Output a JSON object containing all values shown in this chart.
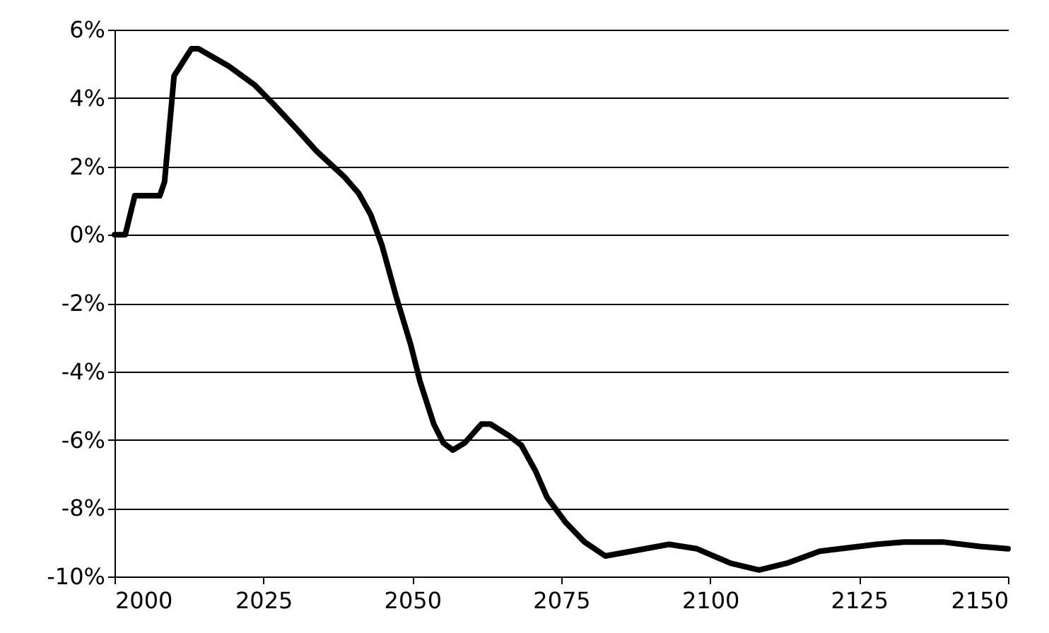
{
  "chart_data": {
    "type": "line",
    "x": [
      2000,
      2001.8,
      2003.4,
      2007.6,
      2008.4,
      2010,
      2012.9,
      2014.1,
      2019.2,
      2023.6,
      2026.7,
      2030.7,
      2033.9,
      2038.6,
      2041,
      2043,
      2044.9,
      2047.3,
      2049.7,
      2051.3,
      2053.6,
      2055.2,
      2056.8,
      2058.8,
      2061.6,
      2063.1,
      2066.3,
      2068.3,
      2070.7,
      2072.6,
      2075.8,
      2078.9,
      2082.4,
      2086.8,
      2093.1,
      2097.8,
      2103.4,
      2108.2,
      2112.9,
      2118.4,
      2127.9,
      2132.6,
      2139,
      2145.3,
      2150
    ],
    "series": [
      {
        "color": "#000000",
        "values": [
          0,
          0,
          1.14,
          1.14,
          1.55,
          4.65,
          5.44,
          5.44,
          4.93,
          4.37,
          3.82,
          3.07,
          2.45,
          1.69,
          1.21,
          0.59,
          -0.31,
          -1.82,
          -3.2,
          -4.3,
          -5.54,
          -6.09,
          -6.3,
          -6.09,
          -5.54,
          -5.54,
          -5.89,
          -6.16,
          -6.92,
          -7.68,
          -8.43,
          -8.99,
          -9.4,
          -9.26,
          -9.06,
          -9.19,
          -9.61,
          -9.81,
          -9.61,
          -9.26,
          -9.06,
          -8.99,
          -8.99,
          -9.12,
          -9.19
        ]
      }
    ],
    "xlim": [
      2000,
      2150
    ],
    "xticks": [
      2000,
      2025,
      2050,
      2075,
      2100,
      2125,
      2150
    ],
    "ylim": [
      -10,
      6
    ],
    "yticks": [
      {
        "value": -10,
        "label": "-10%"
      },
      {
        "value": -8,
        "label": "-8%"
      },
      {
        "value": -6,
        "label": "-6%"
      },
      {
        "value": -4,
        "label": "-4%"
      },
      {
        "value": -2,
        "label": "-2%"
      },
      {
        "value": 0,
        "label": "0%"
      },
      {
        "value": 2,
        "label": "2%"
      },
      {
        "value": 4,
        "label": "4%"
      },
      {
        "value": 6,
        "label": "6%"
      }
    ],
    "grid": "y",
    "marker": "none",
    "line_style": "solid"
  }
}
